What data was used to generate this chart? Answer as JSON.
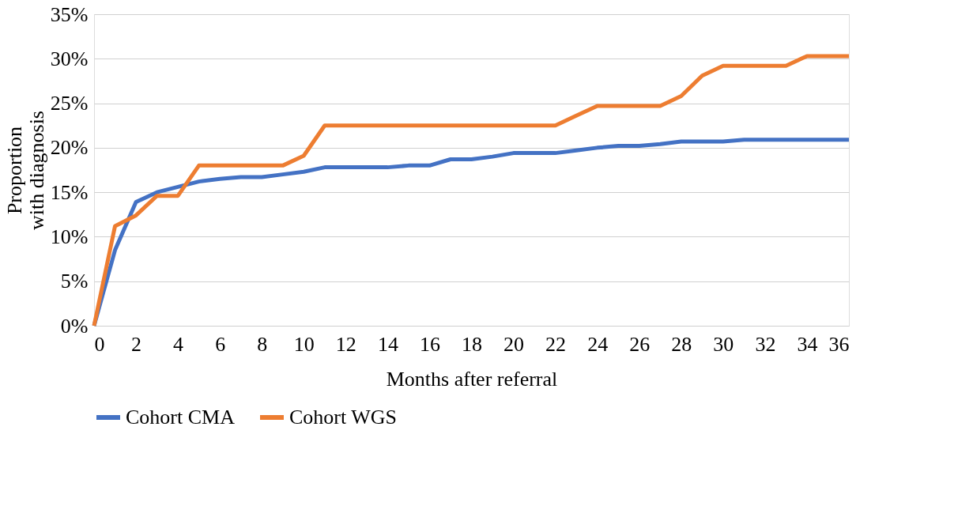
{
  "chart_data": {
    "type": "line",
    "xlabel": "Months after referral",
    "ylabel": "Proportion\nwith diagnosis",
    "x": [
      0,
      1,
      2,
      3,
      4,
      5,
      6,
      7,
      8,
      9,
      10,
      11,
      12,
      13,
      14,
      15,
      16,
      17,
      18,
      19,
      20,
      21,
      22,
      23,
      24,
      25,
      26,
      27,
      28,
      29,
      30,
      31,
      32,
      33,
      34,
      35,
      36
    ],
    "series": [
      {
        "name": "Cohort CMA",
        "color": "#4472c4",
        "values": [
          0,
          8.5,
          13.9,
          15,
          15.6,
          16.2,
          16.5,
          16.7,
          16.7,
          17,
          17.3,
          17.8,
          17.8,
          17.8,
          17.8,
          18,
          18,
          18.7,
          18.7,
          19,
          19.4,
          19.4,
          19.4,
          19.7,
          20,
          20.2,
          20.2,
          20.4,
          20.7,
          20.7,
          20.7,
          20.9,
          20.9,
          20.9,
          20.9,
          20.9,
          20.9
        ]
      },
      {
        "name": "Cohort WGS",
        "color": "#ed7d31",
        "values": [
          0,
          11.2,
          12.4,
          14.6,
          14.6,
          18,
          18,
          18,
          18,
          18,
          19.1,
          22.5,
          22.5,
          22.5,
          22.5,
          22.5,
          22.5,
          22.5,
          22.5,
          22.5,
          22.5,
          22.5,
          22.5,
          23.6,
          24.7,
          24.7,
          24.7,
          24.7,
          25.8,
          28.1,
          29.2,
          29.2,
          29.2,
          29.2,
          30.3,
          30.3,
          30.3
        ]
      }
    ],
    "xlim": [
      0,
      36
    ],
    "xticks": [
      0,
      2,
      4,
      6,
      8,
      10,
      12,
      14,
      16,
      18,
      20,
      22,
      24,
      26,
      28,
      30,
      32,
      34,
      36
    ],
    "ylim": [
      0,
      35
    ],
    "yticks": [
      {
        "value": 0,
        "label": "0%"
      },
      {
        "value": 5,
        "label": "5%"
      },
      {
        "value": 10,
        "label": "10%"
      },
      {
        "value": 15,
        "label": "15%"
      },
      {
        "value": 20,
        "label": "20%"
      },
      {
        "value": 25,
        "label": "25%"
      },
      {
        "value": 30,
        "label": "30%"
      },
      {
        "value": 35,
        "label": "35%"
      }
    ],
    "grid": "y",
    "legend": "bottom",
    "marker": "none",
    "line_style": "solid"
  }
}
